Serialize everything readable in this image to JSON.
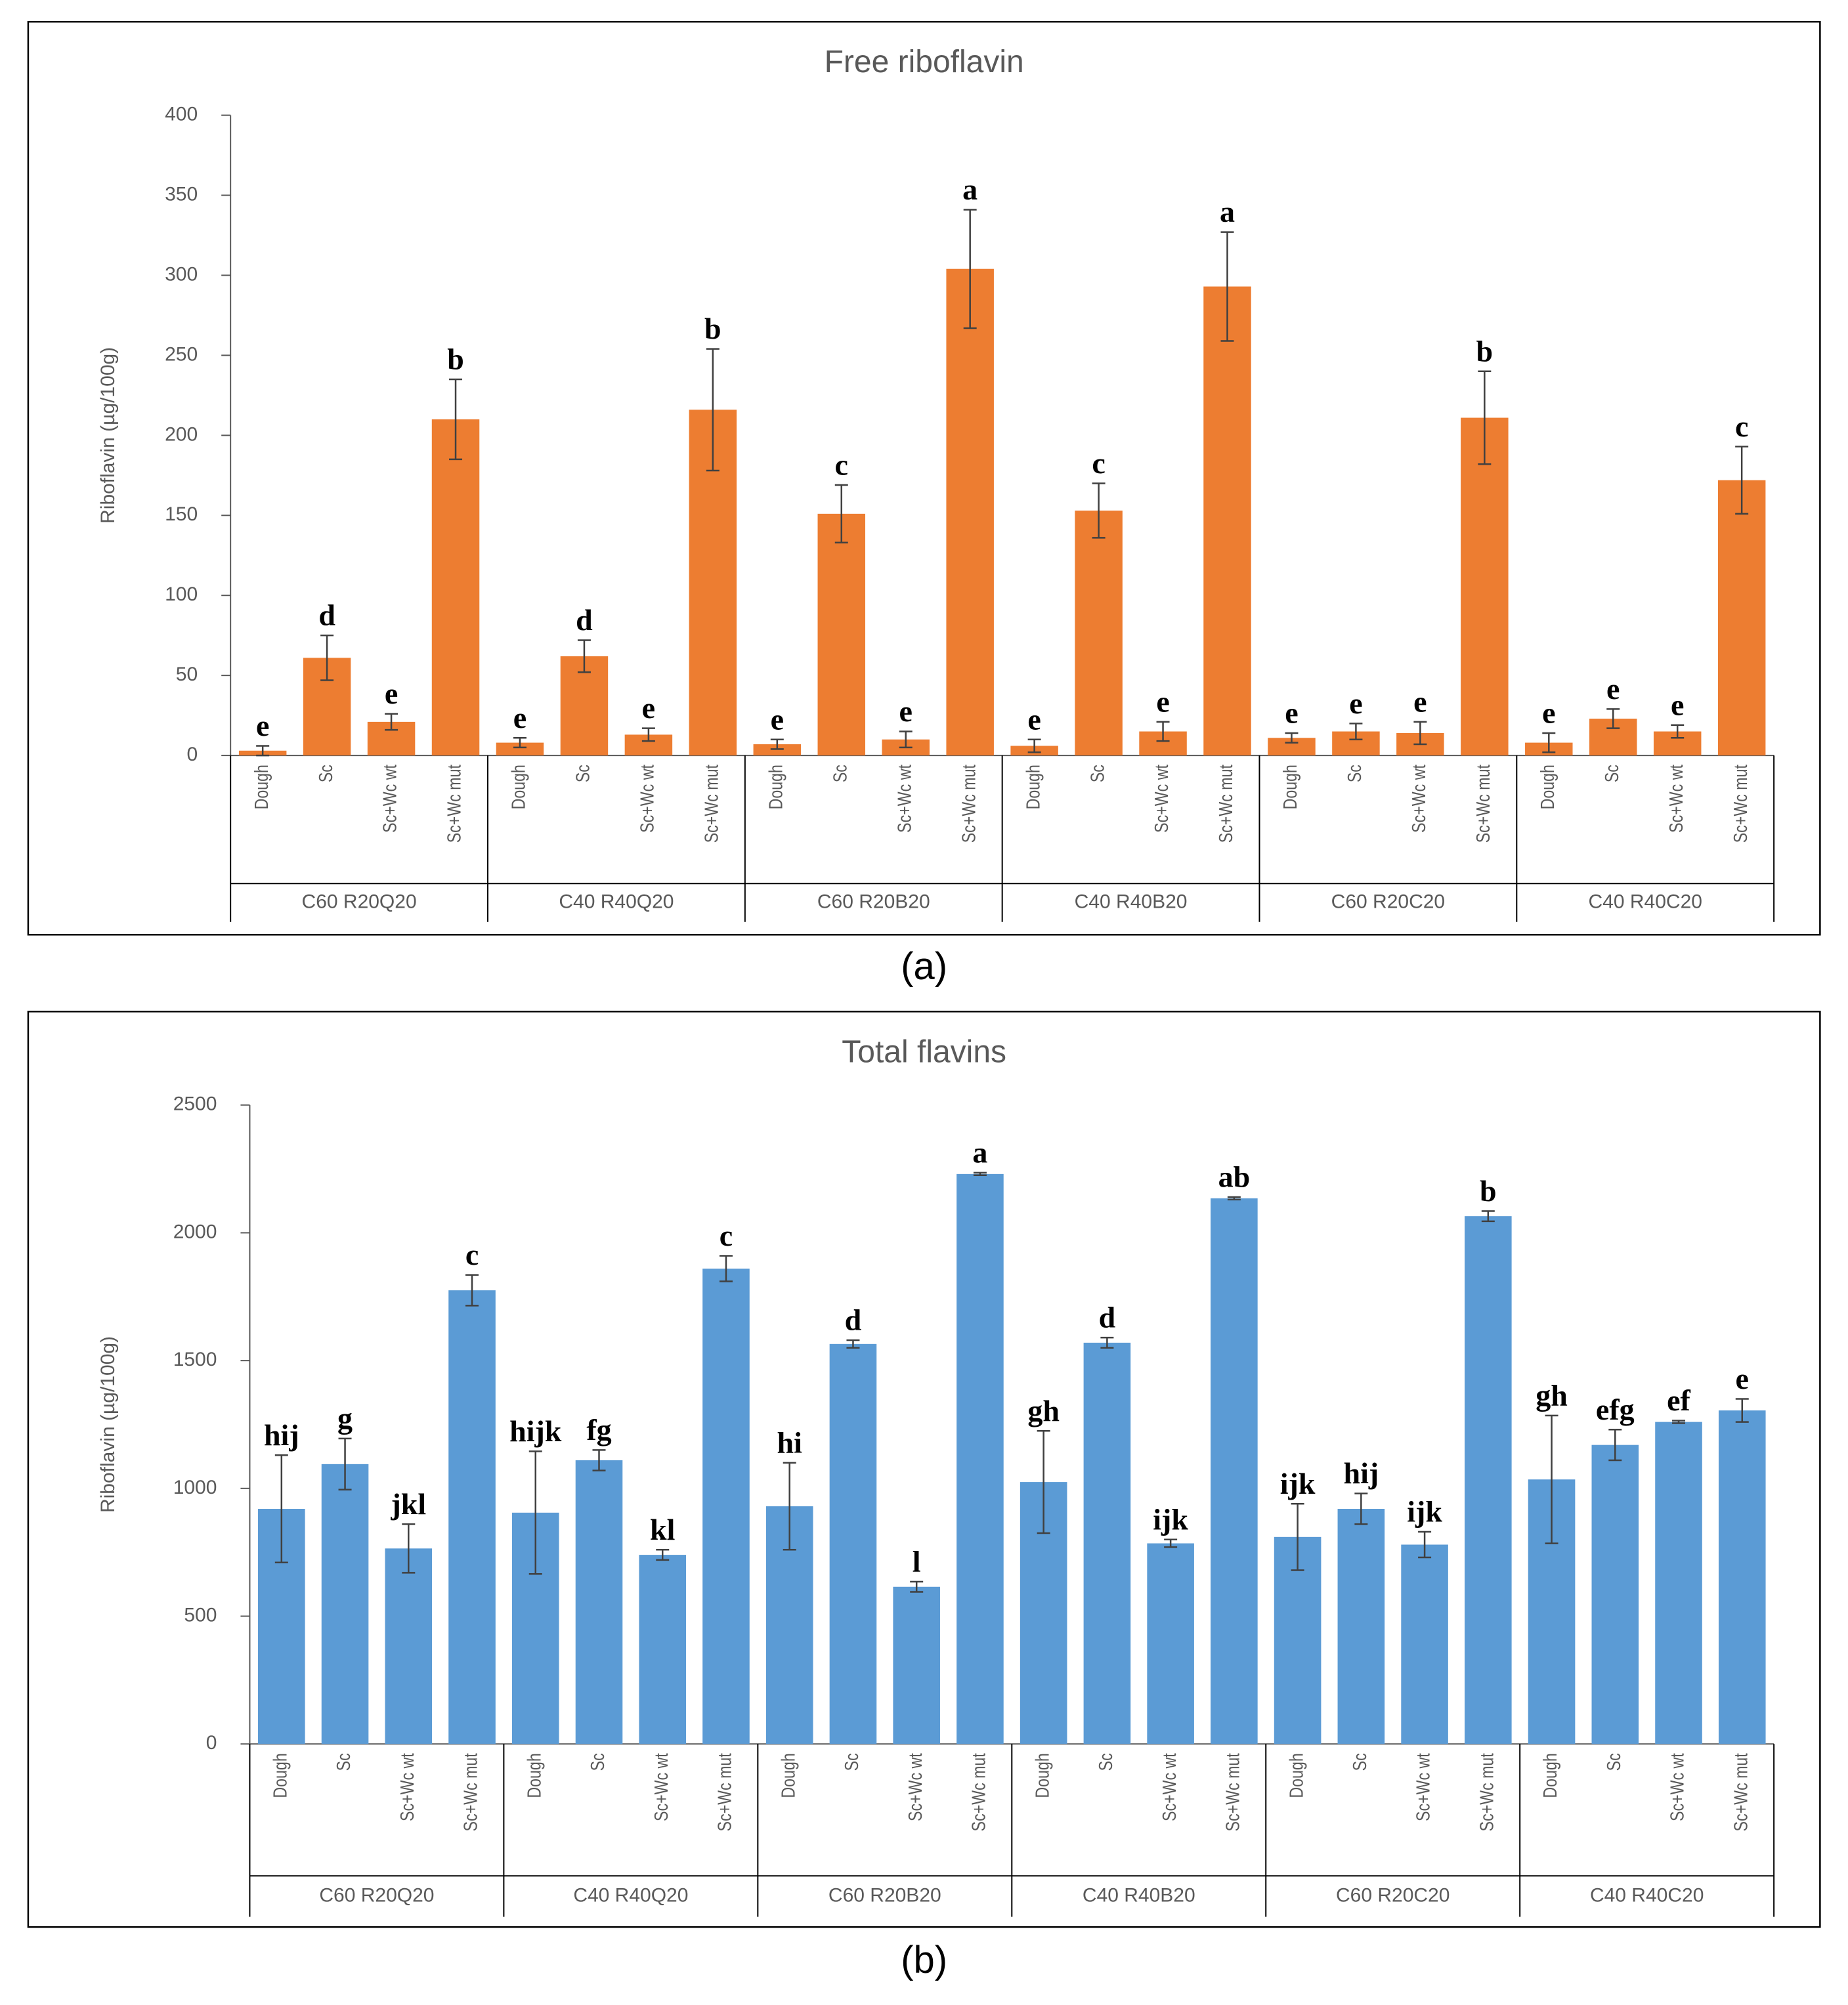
{
  "chart_data": [
    {
      "type": "bar",
      "title": "Free riboflavin",
      "y_label": "Riboflavin (µg/100g)",
      "caption": "(a)",
      "color": "#ed7d31",
      "groups": [
        "C60 R20Q20",
        "C40 R40Q20",
        "C60 R20B20",
        "C40 R40B20",
        "C60 R20C20",
        "C40 R40C20"
      ],
      "categories": [
        "Dough",
        "Sc",
        "Sc+Wc wt",
        "Sc+Wc mut",
        "Dough",
        "Sc",
        "Sc+Wc wt",
        "Sc+Wc mut",
        "Dough",
        "Sc",
        "Sc+Wc wt",
        "Sc+Wc mut",
        "Dough",
        "Sc",
        "Sc+Wc wt",
        "Sc+Wc mut",
        "Dough",
        "Sc",
        "Sc+Wc wt",
        "Sc+Wc mut",
        "Dough",
        "Sc",
        "Sc+Wc wt",
        "Sc+Wc mut"
      ],
      "values": [
        3,
        61,
        21,
        210,
        8,
        62,
        13,
        216,
        7,
        151,
        10,
        304,
        6,
        153,
        15,
        293,
        11,
        15,
        14,
        211,
        8,
        23,
        15,
        172
      ],
      "errors": [
        3,
        14,
        5,
        25,
        3,
        10,
        4,
        38,
        3,
        18,
        5,
        37,
        4,
        17,
        6,
        34,
        3,
        5,
        7,
        29,
        6,
        6,
        4,
        21
      ],
      "annotations": [
        "e",
        "d",
        "e",
        "b",
        "e",
        "d",
        "e",
        "b",
        "e",
        "c",
        "e",
        "a",
        "e",
        "c",
        "e",
        "a",
        "e",
        "e",
        "e",
        "b",
        "e",
        "e",
        "e",
        "c"
      ],
      "ylim": [
        0,
        400
      ],
      "yticks": [
        0,
        50,
        100,
        150,
        200,
        250,
        300,
        350,
        400
      ],
      "grid": false
    },
    {
      "type": "bar",
      "title": "Total flavins",
      "y_label": "Riboflavin (µg/100g)",
      "caption": "(b)",
      "color": "#5b9bd5",
      "groups": [
        "C60 R20Q20",
        "C40 R40Q20",
        "C60 R20B20",
        "C40 R40B20",
        "C60 R20C20",
        "C40 R40C20"
      ],
      "categories": [
        "Dough",
        "Sc",
        "Sc+Wc wt",
        "Sc+Wc mut",
        "Dough",
        "Sc",
        "Sc+Wc wt",
        "Sc+Wc mut",
        "Dough",
        "Sc",
        "Sc+Wc wt",
        "Sc+Wc mut",
        "Dough",
        "Sc",
        "Sc+Wc wt",
        "Sc+Wc mut",
        "Dough",
        "Sc",
        "Sc+Wc wt",
        "Sc+Wc mut",
        "Dough",
        "Sc",
        "Sc+Wc wt",
        "Sc+Wc mut"
      ],
      "values": [
        920,
        1095,
        765,
        1775,
        905,
        1110,
        740,
        1860,
        930,
        1565,
        615,
        2230,
        1025,
        1570,
        785,
        2135,
        810,
        920,
        780,
        2065,
        1035,
        1170,
        1260,
        1305
      ],
      "errors": [
        210,
        100,
        95,
        60,
        240,
        40,
        20,
        50,
        170,
        15,
        20,
        5,
        200,
        20,
        15,
        5,
        130,
        60,
        50,
        20,
        250,
        60,
        5,
        45
      ],
      "annotations": [
        "hij",
        "g",
        "jkl",
        "c",
        "hijk",
        "fg",
        "kl",
        "c",
        "hi",
        "d",
        "l",
        "a",
        "gh",
        "d",
        "ijk",
        "ab",
        "ijk",
        "hij",
        "ijk",
        "b",
        "gh",
        "efg",
        "ef",
        "e"
      ],
      "ylim": [
        0,
        2500
      ],
      "yticks": [
        0,
        500,
        1000,
        1500,
        2000,
        2500
      ],
      "grid": false
    }
  ]
}
